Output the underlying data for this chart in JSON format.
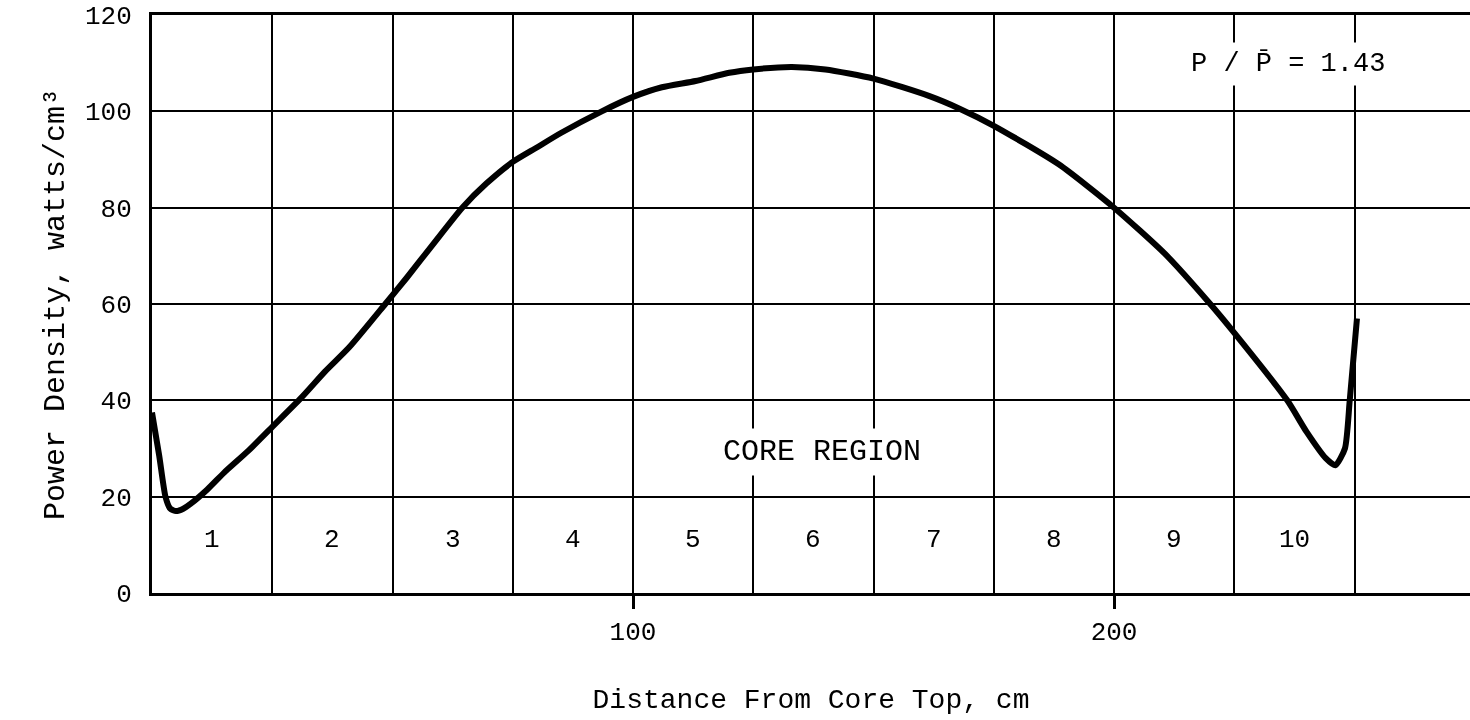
{
  "chart_data": {
    "type": "line",
    "xlabel": "Distance From Core Top, cm",
    "ylabel": "Power Density, watts/cm³",
    "x": [
      0,
      1.5,
      2.8,
      3.8,
      5,
      6.5,
      8,
      11.5,
      15,
      20,
      25,
      31,
      36,
      41,
      48.5,
      53,
      58.5,
      64.5,
      69.5,
      75,
      80,
      85,
      93.5,
      100,
      106,
      113,
      120,
      125,
      133,
      140,
      150,
      161.5,
      168,
      175,
      188.5,
      200,
      210.5,
      220,
      225,
      236,
      240,
      244,
      246,
      248,
      249,
      250.5
    ],
    "values": [
      37.5,
      28.5,
      20,
      17.5,
      17,
      17.5,
      18.5,
      21.5,
      25,
      29.5,
      34.5,
      40.5,
      46,
      51,
      60,
      65.5,
      72.5,
      80,
      85,
      89.5,
      92.5,
      95.5,
      100,
      103,
      105,
      106.3,
      108,
      108.7,
      109.2,
      108.7,
      106.8,
      103.2,
      100.5,
      97,
      89,
      80,
      70.5,
      60,
      54,
      40,
      33.5,
      28,
      26.5,
      30,
      40,
      57
    ],
    "color": "#000000",
    "line_style": "solid",
    "grid": true,
    "xlim": [
      0,
      274
    ],
    "ylim": [
      0,
      120
    ],
    "xticks": [
      {
        "value": 25,
        "label": null
      },
      {
        "value": 50,
        "label": null
      },
      {
        "value": 75,
        "label": null
      },
      100,
      {
        "value": 125,
        "label": null
      },
      {
        "value": 150,
        "label": null
      },
      {
        "value": 175,
        "label": null
      },
      200,
      {
        "value": 225,
        "label": null
      },
      {
        "value": 250,
        "label": null
      }
    ],
    "yticks": [
      0,
      20,
      40,
      60,
      80,
      100,
      120
    ],
    "annotations": [
      "P / P̄ = 1.43",
      "CORE REGION",
      "1",
      "2",
      "3",
      "4",
      "5",
      "6",
      "7",
      "8",
      "9",
      "10"
    ]
  }
}
